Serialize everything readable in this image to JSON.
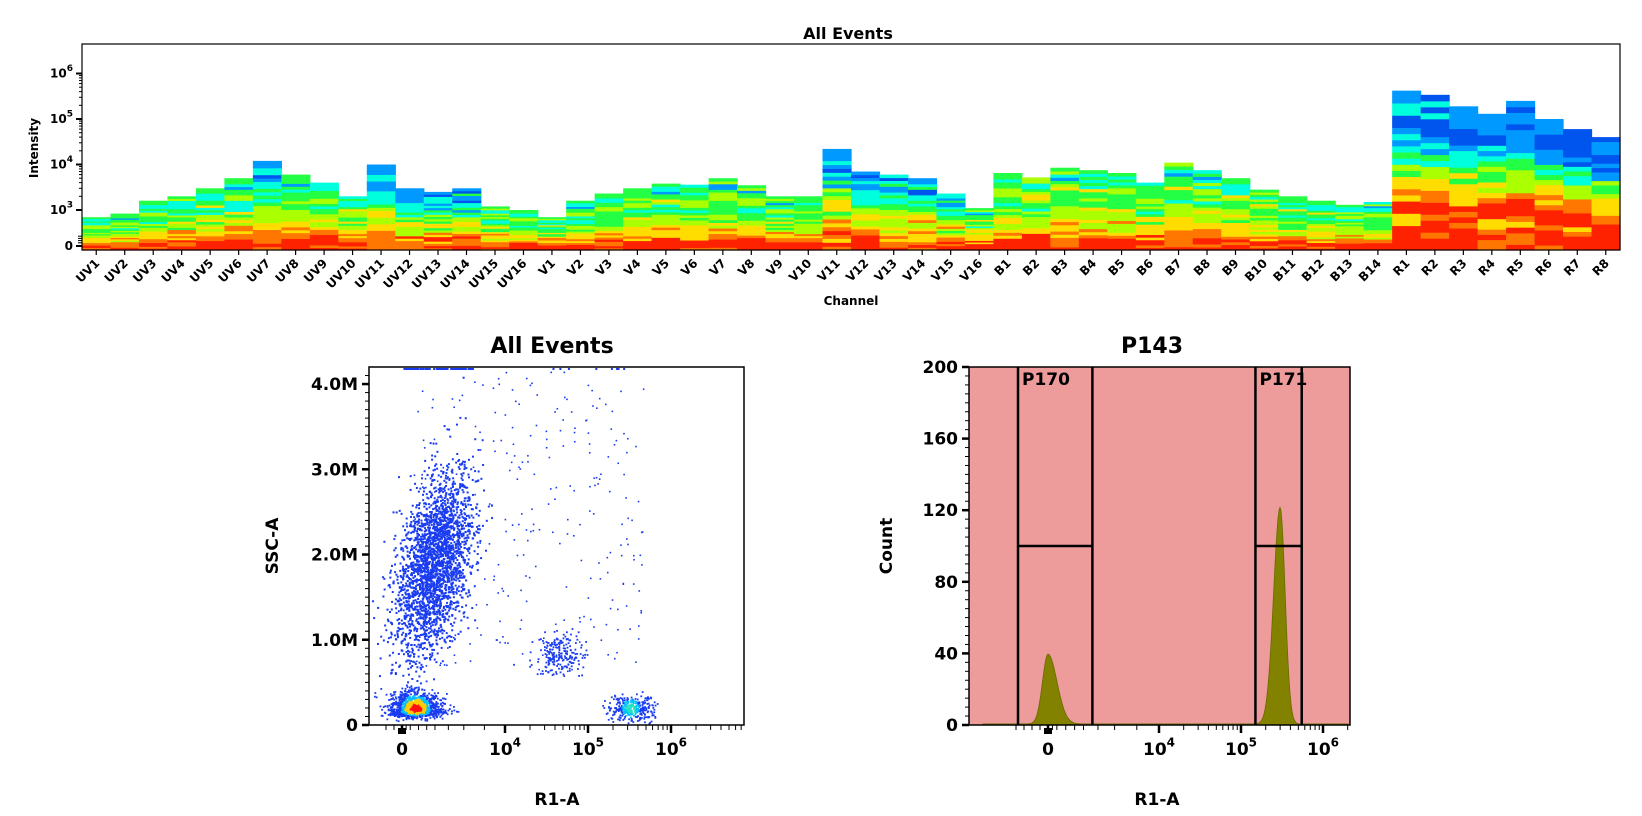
{
  "chart_data": [
    {
      "type": "heatmap",
      "title": "All Events",
      "xlabel": "Channel",
      "ylabel": "Intensity",
      "y_scale": "log",
      "y_tick_labels": [
        "0",
        "10^3",
        "10^4",
        "10^5",
        "10^6"
      ],
      "categories": [
        "UV1",
        "UV2",
        "UV3",
        "UV4",
        "UV5",
        "UV6",
        "UV7",
        "UV8",
        "UV9",
        "UV10",
        "UV11",
        "UV12",
        "UV13",
        "UV14",
        "UV15",
        "UV16",
        "V1",
        "V2",
        "V3",
        "V4",
        "V5",
        "V6",
        "V7",
        "V8",
        "V9",
        "V10",
        "V11",
        "V12",
        "V13",
        "V14",
        "V15",
        "V16",
        "B1",
        "B2",
        "B3",
        "B4",
        "B5",
        "B6",
        "B7",
        "B8",
        "B9",
        "B10",
        "B11",
        "B12",
        "B13",
        "B14",
        "R1",
        "R2",
        "R3",
        "R4",
        "R5",
        "R6",
        "R7",
        "R8"
      ],
      "max_intensity": [
        800,
        900,
        1600,
        2000,
        3000,
        5000,
        12000,
        6000,
        4000,
        2000,
        10000,
        3000,
        2500,
        3000,
        1200,
        1000,
        800,
        1600,
        2300,
        3000,
        3800,
        3600,
        5000,
        3500,
        2000,
        2000,
        22000,
        7000,
        6000,
        5000,
        2300,
        1100,
        6500,
        5200,
        8500,
        7500,
        6500,
        4000,
        11000,
        7500,
        5000,
        2800,
        2000,
        1600,
        1300,
        1500,
        420000,
        340000,
        190000,
        130000,
        250000,
        100000,
        60000,
        40000
      ],
      "profile": [
        "low",
        "low",
        "low",
        "low",
        "low",
        "low",
        "mid",
        "low",
        "low",
        "low",
        "mid",
        "mid",
        "mid",
        "mid",
        "low",
        "low",
        "low",
        "low",
        "low",
        "low",
        "low",
        "low",
        "low",
        "low",
        "low",
        "low",
        "mid",
        "mid",
        "mid",
        "mid",
        "mid",
        "low",
        "low",
        "low",
        "low",
        "low",
        "low",
        "low",
        "low",
        "low",
        "low",
        "low",
        "low",
        "low",
        "low",
        "low",
        "high",
        "high",
        "high",
        "high",
        "high",
        "high",
        "high",
        "high"
      ],
      "colorscale": [
        "#ff2200",
        "#ff7700",
        "#ffdd00",
        "#aaff00",
        "#22ff44",
        "#00ffdd",
        "#0099ff",
        "#0055ee"
      ]
    },
    {
      "type": "scatter",
      "title": "All Events",
      "xlabel": "R1-A",
      "ylabel": "SSC-A",
      "x_scale": "biexponential",
      "x_tick_labels": [
        "0",
        "10^4",
        "10^5",
        "10^6"
      ],
      "y_tick_labels": [
        "0",
        "1.0M",
        "2.0M",
        "3.0M",
        "4.0M"
      ],
      "ylim": [
        0,
        4200000
      ],
      "populations": [
        {
          "x_center": 500,
          "y_center": 150000,
          "count": 1200
        },
        {
          "x_center": 3000,
          "y_center": 1900000,
          "count": 2600
        },
        {
          "x_center": 45000,
          "y_center": 850000,
          "count": 220
        },
        {
          "x_center": 320000,
          "y_center": 270000,
          "count": 320
        }
      ],
      "colors": {
        "dot": "#1a3cf0",
        "dense": "#00c0ff",
        "core": "#ff1010"
      }
    },
    {
      "type": "area",
      "title": "P143",
      "xlabel": "R1-A",
      "ylabel": "Count",
      "x_scale": "biexponential",
      "x_tick_labels": [
        "0",
        "10^4",
        "10^5",
        "10^6"
      ],
      "y_tick_labels": [
        "0",
        "40",
        "80",
        "120",
        "160",
        "200"
      ],
      "ylim": [
        0,
        200
      ],
      "peaks": [
        {
          "x_center": 0,
          "height": 39
        },
        {
          "x_center": 300000,
          "height": 121
        }
      ],
      "gates": [
        {
          "name": "P170",
          "x_range": [
            -1500,
            4000
          ]
        },
        {
          "name": "P171",
          "x_range": [
            150000,
            550000
          ]
        }
      ],
      "colors": {
        "fill": "#828200",
        "background": "#ee9b9b"
      }
    }
  ]
}
